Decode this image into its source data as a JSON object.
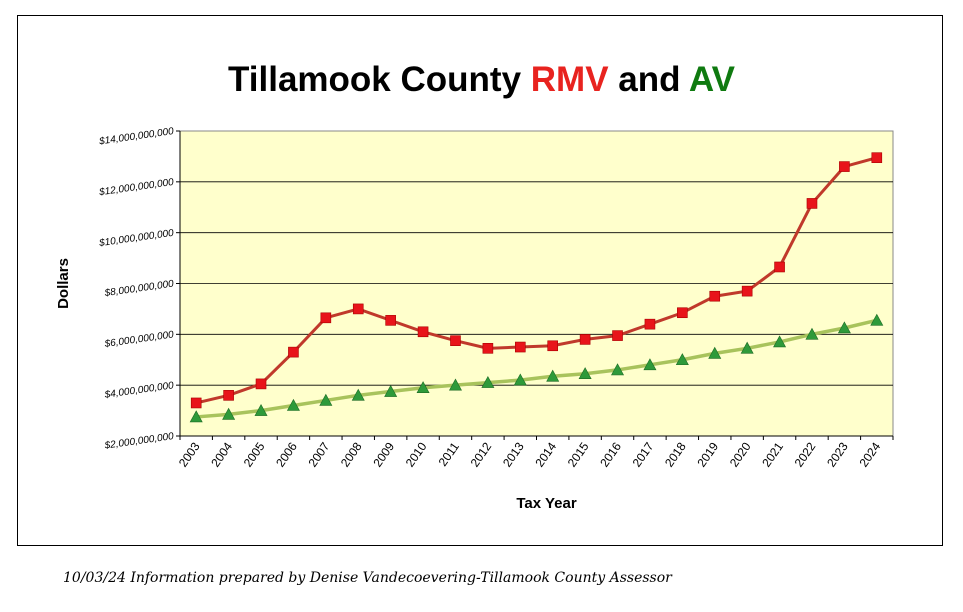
{
  "title": {
    "prefix": "Tillamook County ",
    "rmv": "RMV",
    "middle": " and ",
    "av": "AV"
  },
  "footer": "10/03/24 Information prepared by Denise Vandecoevering-Tillamook County Assessor",
  "colors": {
    "rmv": "#e8231f",
    "av": "#0f7a10",
    "plot_background": "#ffffcc"
  },
  "chart_data": {
    "type": "line",
    "xlabel": "Tax Year",
    "ylabel": "Dollars",
    "ylim": [
      2000000000,
      14000000000
    ],
    "yticks": [
      2000000000,
      4000000000,
      6000000000,
      8000000000,
      10000000000,
      12000000000,
      14000000000
    ],
    "ytick_labels": [
      "$2,000,000,000",
      "$4,000,000,000",
      "$6,000,000,000",
      "$8,000,000,000",
      "$10,000,000,000",
      "$12,000,000,000",
      "$14,000,000,000"
    ],
    "grid": true,
    "categories": [
      "2003",
      "2004",
      "2005",
      "2006",
      "2007",
      "2008",
      "2009",
      "2010",
      "2011",
      "2012",
      "2013",
      "2014",
      "2015",
      "2016",
      "2017",
      "2018",
      "2019",
      "2020",
      "2021",
      "2022",
      "2023",
      "2024"
    ],
    "series": [
      {
        "name": "RMV",
        "color": "#c0392b",
        "marker": "square",
        "marker_color": "#e8141a",
        "values": [
          3300000000,
          3600000000,
          4050000000,
          5300000000,
          6650000000,
          7000000000,
          6550000000,
          6100000000,
          5750000000,
          5450000000,
          5500000000,
          5550000000,
          5800000000,
          5950000000,
          6400000000,
          6850000000,
          7500000000,
          7700000000,
          8650000000,
          11150000000,
          12600000000,
          12950000000
        ]
      },
      {
        "name": "AV",
        "color": "#a8c35c",
        "marker": "triangle",
        "marker_color": "#2e9a3a",
        "values": [
          2750000000,
          2850000000,
          3000000000,
          3200000000,
          3400000000,
          3600000000,
          3750000000,
          3900000000,
          4000000000,
          4100000000,
          4200000000,
          4350000000,
          4450000000,
          4600000000,
          4800000000,
          5000000000,
          5250000000,
          5450000000,
          5700000000,
          6000000000,
          6250000000,
          6550000000
        ]
      }
    ]
  }
}
